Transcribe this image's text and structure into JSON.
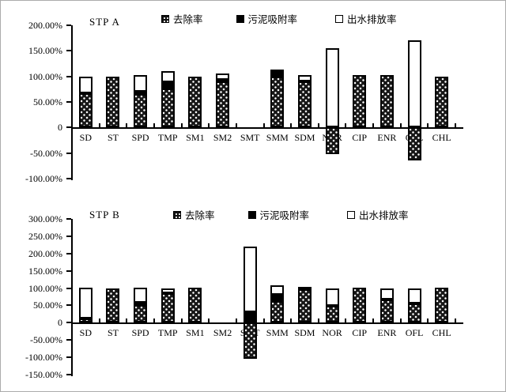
{
  "figure": {
    "background": "#ffffff",
    "frame_border_color": "#ababab"
  },
  "legend_styles": {
    "removal": "dotted-black",
    "sludge": "solid-black",
    "effluent": "white-outline"
  },
  "chart_data": [
    {
      "type": "bar",
      "stacked": true,
      "title": "STP A",
      "legend_position": "top",
      "grid": false,
      "categories": [
        "SD",
        "ST",
        "SPD",
        "TMP",
        "SM1",
        "SM2",
        "SMT",
        "SMM",
        "SDM",
        "NOR",
        "CIP",
        "ENR",
        "OFL",
        "CHL"
      ],
      "series": [
        {
          "name": "去除率",
          "style": "dotted",
          "values": [
            67,
            100,
            65,
            76,
            100,
            90,
            0,
            100,
            90,
            -52,
            102,
            102,
            -64,
            100
          ]
        },
        {
          "name": "污泥吸附率",
          "style": "black",
          "values": [
            0,
            0,
            5,
            12,
            0,
            3,
            0,
            13,
            0,
            0,
            0,
            0,
            0,
            0
          ]
        },
        {
          "name": "出水排放率",
          "style": "white",
          "values": [
            33,
            0,
            32,
            22,
            0,
            13,
            0,
            0,
            13,
            155,
            0,
            0,
            170,
            0
          ]
        }
      ],
      "ylim": [
        -100,
        200
      ],
      "ytick_step": 50,
      "ytick_labels": [
        "200.00%",
        "150.00%",
        "100.00%",
        "50.00%",
        "0",
        "-50.00%",
        "-100.00%"
      ]
    },
    {
      "type": "bar",
      "stacked": true,
      "title": "STP B",
      "legend_position": "top",
      "grid": false,
      "categories": [
        "SD",
        "ST",
        "SPD",
        "TMP",
        "SM1",
        "SM2",
        "SMT",
        "SMM",
        "SDM",
        "NOR",
        "CIP",
        "ENR",
        "OFL",
        "CHL"
      ],
      "series": [
        {
          "name": "去除率",
          "style": "dotted",
          "values": [
            13,
            100,
            52,
            85,
            102,
            0,
            -105,
            62,
            97,
            48,
            102,
            67,
            55,
            102
          ]
        },
        {
          "name": "污泥吸附率",
          "style": "black",
          "values": [
            0,
            0,
            5,
            0,
            0,
            0,
            30,
            18,
            7,
            0,
            0,
            0,
            0,
            0
          ]
        },
        {
          "name": "出水排放率",
          "style": "white",
          "values": [
            88,
            0,
            45,
            15,
            0,
            0,
            190,
            28,
            0,
            50,
            0,
            33,
            43,
            0
          ]
        }
      ],
      "ylim": [
        -150,
        300
      ],
      "ytick_step": 50,
      "ytick_labels": [
        "300.00%",
        "250.00%",
        "200.00%",
        "150.00%",
        "100.00%",
        "50.00%",
        "0",
        "-50.00%",
        "-100.00%",
        "-150.00%"
      ]
    }
  ]
}
